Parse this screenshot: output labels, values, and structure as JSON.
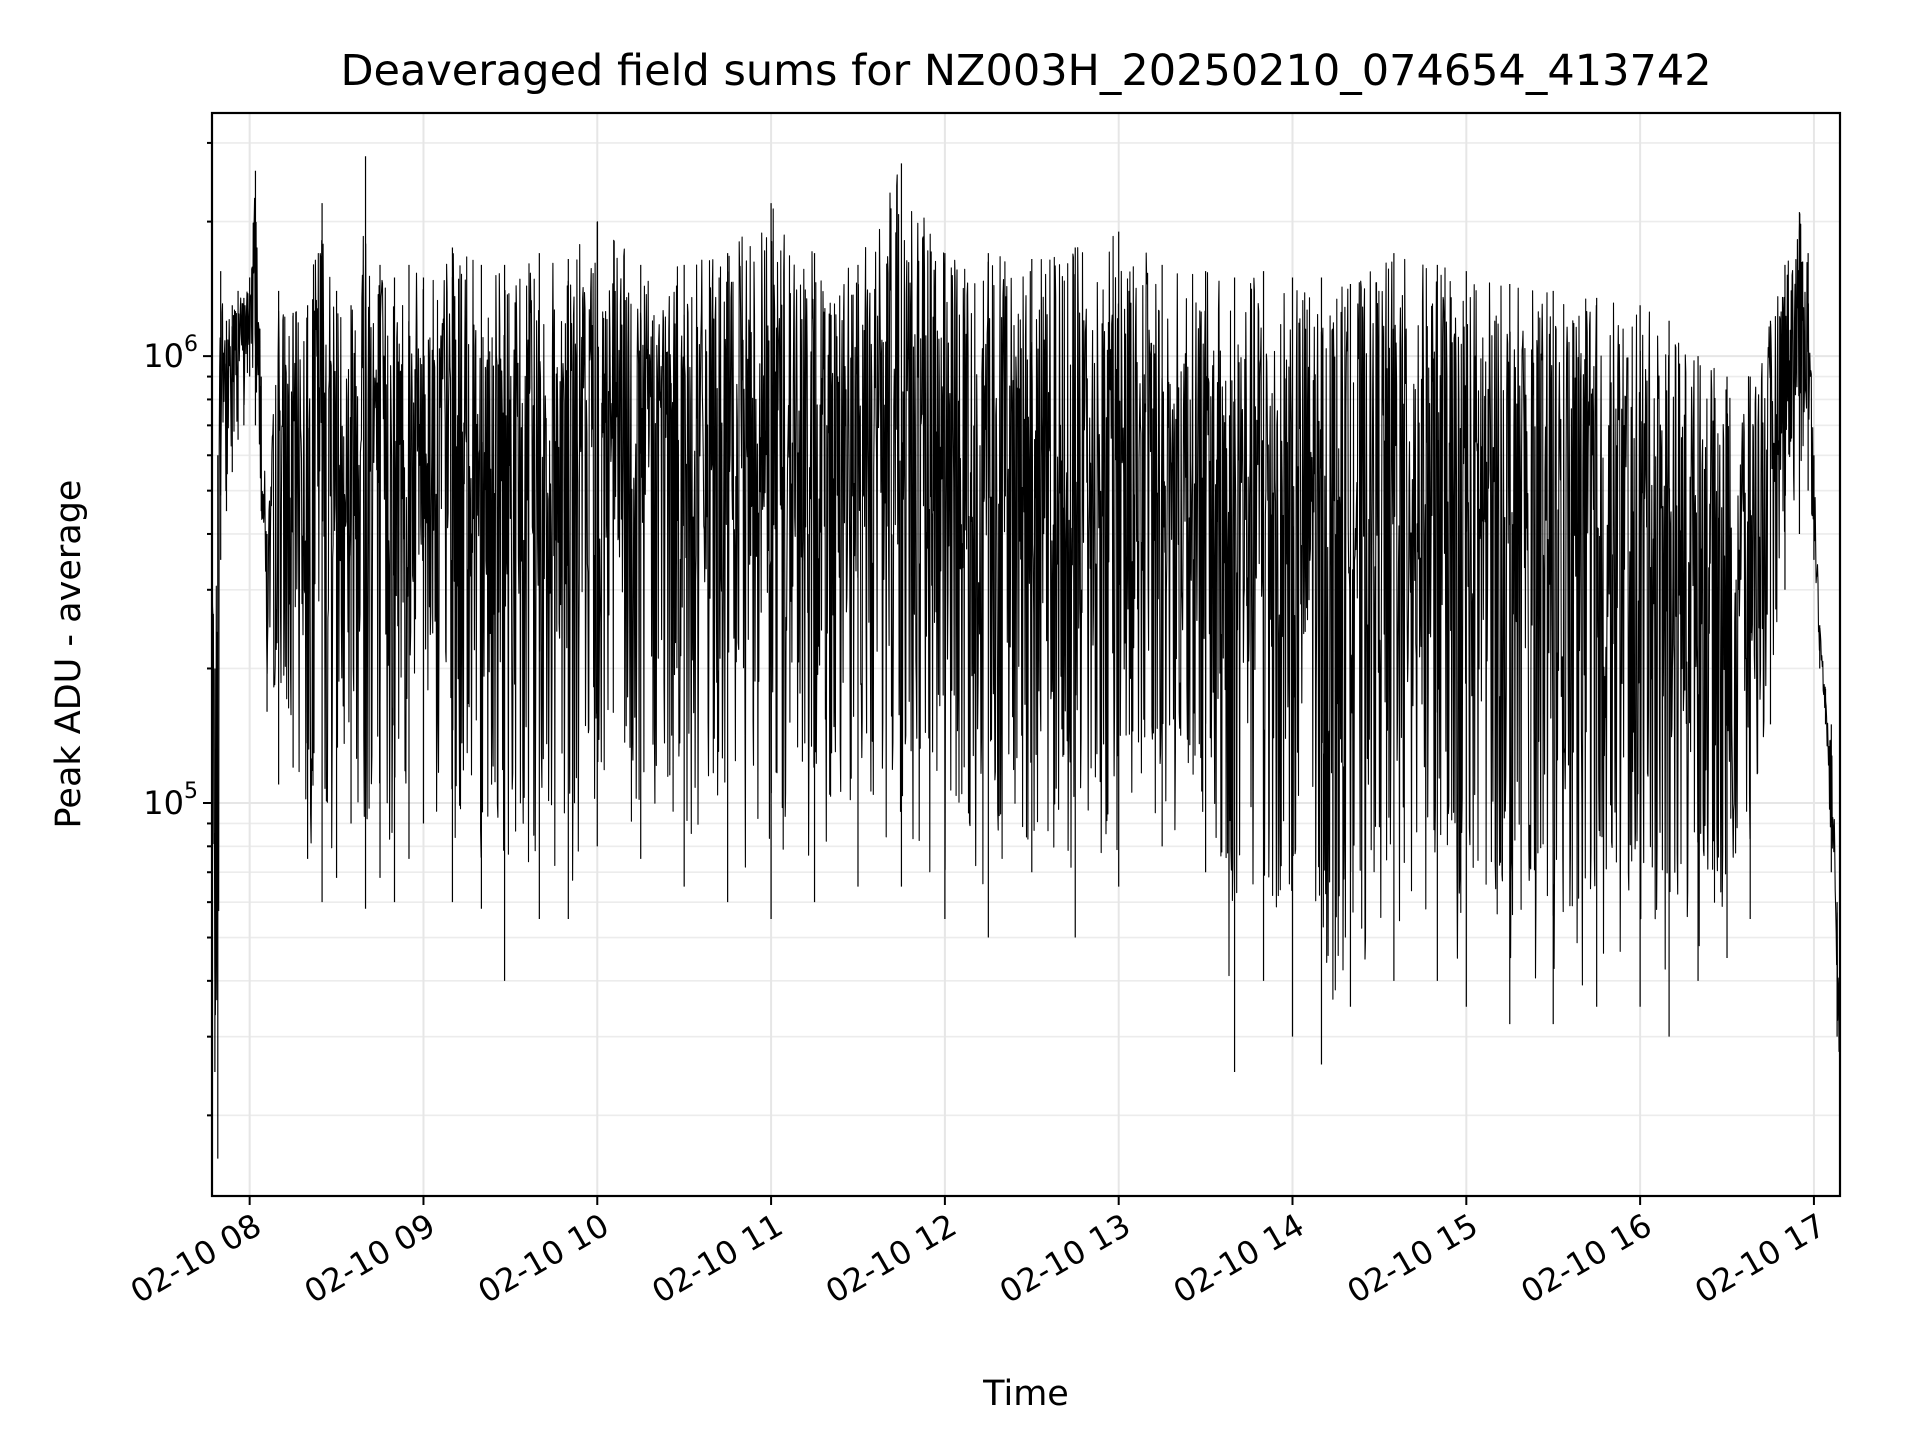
{
  "chart_data": {
    "type": "line",
    "title": "Deaveraged field sums for NZ003H_20250210_074654_413742",
    "xlabel": "Time",
    "ylabel": "Peak ADU - average",
    "yscale": "log",
    "xlim": [
      "2025-02-10T07:47:00",
      "2025-02-10T17:09:00"
    ],
    "ylim": [
      13200,
      3500000
    ],
    "x_ticks": [
      {
        "value": "2025-02-10T08:00:00",
        "label": "02-10 08"
      },
      {
        "value": "2025-02-10T09:00:00",
        "label": "02-10 09"
      },
      {
        "value": "2025-02-10T10:00:00",
        "label": "02-10 10"
      },
      {
        "value": "2025-02-10T11:00:00",
        "label": "02-10 11"
      },
      {
        "value": "2025-02-10T12:00:00",
        "label": "02-10 12"
      },
      {
        "value": "2025-02-10T13:00:00",
        "label": "02-10 13"
      },
      {
        "value": "2025-02-10T14:00:00",
        "label": "02-10 14"
      },
      {
        "value": "2025-02-10T15:00:00",
        "label": "02-10 15"
      },
      {
        "value": "2025-02-10T16:00:00",
        "label": "02-10 16"
      },
      {
        "value": "2025-02-10T17:00:00",
        "label": "02-10 17"
      }
    ],
    "y_ticks": [
      {
        "value": 100000,
        "base": "10",
        "exp": "5"
      },
      {
        "value": 1000000,
        "base": "10",
        "exp": "6"
      }
    ],
    "grid": true,
    "line_color": "#000000",
    "series": [
      {
        "x": [
          "2025-02-10T07:47:00",
          "2025-02-10T07:48:00",
          "2025-02-10T07:49:00",
          "2025-02-10T07:50:00",
          "2025-02-10T07:52:00",
          "2025-02-10T07:54:00",
          "2025-02-10T07:56:00",
          "2025-02-10T07:58:00",
          "2025-02-10T08:00:00",
          "2025-02-10T08:02:00",
          "2025-02-10T08:04:00",
          "2025-02-10T08:06:00",
          "2025-02-10T08:10:00",
          "2025-02-10T08:15:00",
          "2025-02-10T08:20:00",
          "2025-02-10T08:25:00",
          "2025-02-10T08:30:00",
          "2025-02-10T08:35:00",
          "2025-02-10T08:40:00",
          "2025-02-10T08:45:00",
          "2025-02-10T08:50:00",
          "2025-02-10T08:55:00",
          "2025-02-10T09:00:00",
          "2025-02-10T09:10:00",
          "2025-02-10T09:20:00",
          "2025-02-10T09:28:00",
          "2025-02-10T09:40:00",
          "2025-02-10T09:50:00",
          "2025-02-10T10:00:00",
          "2025-02-10T10:15:00",
          "2025-02-10T10:30:00",
          "2025-02-10T10:45:00",
          "2025-02-10T11:00:00",
          "2025-02-10T11:15:00",
          "2025-02-10T11:30:00",
          "2025-02-10T11:45:00",
          "2025-02-10T12:00:00",
          "2025-02-10T12:15:00",
          "2025-02-10T12:30:00",
          "2025-02-10T12:45:00",
          "2025-02-10T13:00:00",
          "2025-02-10T13:15:00",
          "2025-02-10T13:30:00",
          "2025-02-10T13:40:00",
          "2025-02-10T13:50:00",
          "2025-02-10T14:00:00",
          "2025-02-10T14:10:00",
          "2025-02-10T14:20:00",
          "2025-02-10T14:35:00",
          "2025-02-10T14:50:00",
          "2025-02-10T15:00:00",
          "2025-02-10T15:15:00",
          "2025-02-10T15:30:00",
          "2025-02-10T15:45:00",
          "2025-02-10T16:00:00",
          "2025-02-10T16:10:00",
          "2025-02-10T16:20:00",
          "2025-02-10T16:30:00",
          "2025-02-10T16:38:00",
          "2025-02-10T16:45:00",
          "2025-02-10T16:50:00",
          "2025-02-10T16:55:00",
          "2025-02-10T16:58:00",
          "2025-02-10T17:00:00",
          "2025-02-10T17:02:00",
          "2025-02-10T17:04:00",
          "2025-02-10T17:06:00",
          "2025-02-10T17:08:00",
          "2025-02-10T17:09:00"
        ],
        "low": [
          150000,
          25000,
          16000,
          350000,
          450000,
          550000,
          650000,
          700000,
          900000,
          700000,
          450000,
          160000,
          110000,
          120000,
          75000,
          60000,
          68000,
          90000,
          58000,
          68000,
          60000,
          75000,
          90000,
          60000,
          58000,
          40000,
          55000,
          55000,
          80000,
          75000,
          65000,
          60000,
          55000,
          60000,
          65000,
          65000,
          55000,
          50000,
          70000,
          50000,
          65000,
          80000,
          70000,
          25000,
          40000,
          30000,
          26000,
          35000,
          40000,
          40000,
          35000,
          32000,
          32000,
          35000,
          35000,
          30000,
          40000,
          45000,
          55000,
          150000,
          300000,
          400000,
          500000,
          350000,
          200000,
          150000,
          70000,
          30000,
          25000
        ],
        "high": [
          430000,
          200000,
          600000,
          1550000,
          1200000,
          1300000,
          1400000,
          1350000,
          1500000,
          2600000,
          900000,
          400000,
          1400000,
          1250000,
          1300000,
          2200000,
          1400000,
          1300000,
          2800000,
          1600000,
          1500000,
          1600000,
          1500000,
          1750000,
          1600000,
          1600000,
          1700000,
          1650000,
          2000000,
          1600000,
          1600000,
          1700000,
          2200000,
          1700000,
          1600000,
          2700000,
          1700000,
          1700000,
          1650000,
          1750000,
          1900000,
          1600000,
          1550000,
          1500000,
          1550000,
          1500000,
          1500000,
          1450000,
          1700000,
          1600000,
          1550000,
          1450000,
          1400000,
          1350000,
          1300000,
          1200000,
          1000000,
          900000,
          900000,
          1200000,
          1600000,
          2100000,
          1700000,
          600000,
          250000,
          180000,
          150000,
          60000,
          45000
        ]
      }
    ]
  }
}
